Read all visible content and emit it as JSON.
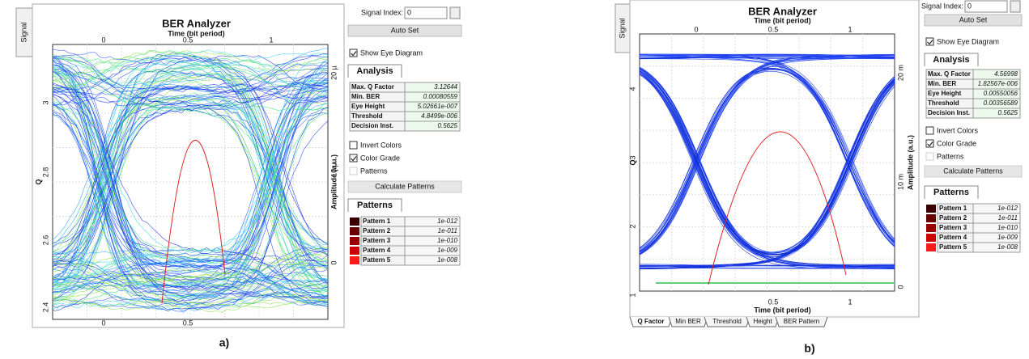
{
  "panels": [
    {
      "label": "a)",
      "title": "BER Analyzer",
      "x_axis_label": "Time (bit period)",
      "y_axis_label": "Q",
      "y2_axis_label": "Amplitude (a.u.)",
      "side_tab": "Signal",
      "top_ticks": [
        "0",
        "0.5",
        "1"
      ],
      "bottom_ticks": [
        "0",
        "0.5"
      ],
      "left_ticks": [
        "3",
        "2.8",
        "2.6",
        "2.4"
      ],
      "right_ticks": [
        "20 µ",
        "10 µ",
        "0"
      ],
      "signal_index_label": "Signal Index:",
      "signal_index_value": "0",
      "auto_set": "Auto Set",
      "calculate_patterns": "Calculate Patterns",
      "checkboxes": [
        {
          "label": "Show Eye Diagram",
          "checked": true,
          "enabled": true
        },
        {
          "label": "Invert Colors",
          "checked": false,
          "enabled": true
        },
        {
          "label": "Color Grade",
          "checked": true,
          "enabled": true
        },
        {
          "label": "Patterns",
          "checked": false,
          "enabled": false
        }
      ],
      "analysis": {
        "tab": "Analysis",
        "rows": [
          [
            "Max. Q Factor",
            "3.12644"
          ],
          [
            "Min. BER",
            "0.00080559"
          ],
          [
            "Eye Height",
            "5.02661e-007"
          ],
          [
            "Threshold",
            "4.8499e-006"
          ],
          [
            "Decision Inst.",
            "0.5625"
          ]
        ]
      },
      "patterns": {
        "tab": "Patterns",
        "rows": [
          {
            "name": "Pattern 1",
            "value": "1e-012",
            "color": "#3a0000"
          },
          {
            "name": "Pattern 2",
            "value": "1e-011",
            "color": "#6a0000"
          },
          {
            "name": "Pattern 3",
            "value": "1e-010",
            "color": "#9a0000"
          },
          {
            "name": "Pattern 4",
            "value": "1e-009",
            "color": "#cc0000"
          },
          {
            "name": "Pattern 5",
            "value": "1e-008",
            "color": "#ff1a1a"
          }
        ]
      }
    },
    {
      "label": "b)",
      "title": "BER Analyzer",
      "x_axis_label": "Time (bit period)",
      "y_axis_label": "Q",
      "y2_axis_label": "Amplitude (a.u.)",
      "side_tab": "Signal",
      "top_ticks": [
        "0",
        "0.5",
        "1"
      ],
      "bottom_ticks": [
        "0.5",
        "1"
      ],
      "left_ticks": [
        "4",
        "3",
        "2",
        "1"
      ],
      "right_ticks": [
        "20 m",
        "10 m",
        "0"
      ],
      "bottom_x_axis_label": "Time (bit period)",
      "bottom_tabs": [
        "Q Factor",
        "Min BER",
        "Threshold",
        "Height",
        "BER Pattern"
      ],
      "signal_index_label": "Signal Index:",
      "signal_index_value": "0",
      "auto_set": "Auto Set",
      "calculate_patterns": "Calculate Patterns",
      "checkboxes": [
        {
          "label": "Show Eye Diagram",
          "checked": true,
          "enabled": true
        },
        {
          "label": "Invert Colors",
          "checked": false,
          "enabled": true
        },
        {
          "label": "Color Grade",
          "checked": true,
          "enabled": true
        },
        {
          "label": "Patterns",
          "checked": false,
          "enabled": false
        }
      ],
      "analysis": {
        "tab": "Analysis",
        "rows": [
          [
            "Max. Q Factor",
            "4.56998"
          ],
          [
            "Min. BER",
            "1.82567e-006"
          ],
          [
            "Eye Height",
            "0.00550056"
          ],
          [
            "Threshold",
            "0.00356589"
          ],
          [
            "Decision Inst.",
            "0.5625"
          ]
        ]
      },
      "patterns": {
        "tab": "Patterns",
        "rows": [
          {
            "name": "Pattern 1",
            "value": "1e-012",
            "color": "#3a0000"
          },
          {
            "name": "Pattern 2",
            "value": "1e-011",
            "color": "#6a0000"
          },
          {
            "name": "Pattern 3",
            "value": "1e-010",
            "color": "#9a0000"
          },
          {
            "name": "Pattern 4",
            "value": "1e-009",
            "color": "#cc0000"
          },
          {
            "name": "Pattern 5",
            "value": "1e-008",
            "color": "#ff1a1a"
          }
        ]
      }
    }
  ]
}
